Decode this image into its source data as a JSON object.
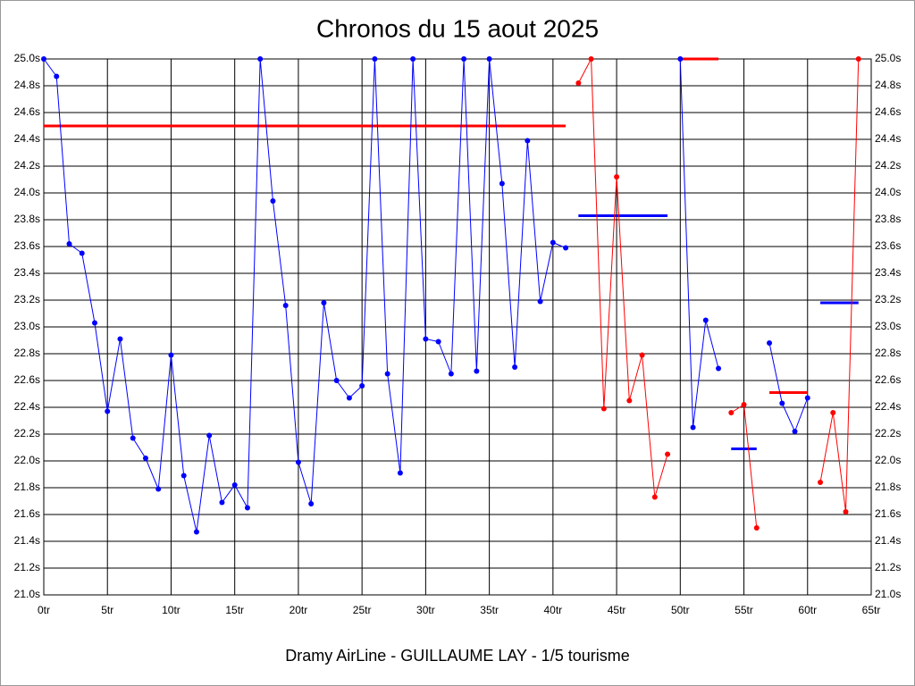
{
  "chart_data": {
    "type": "line",
    "title": "Chronos du 15 aout 2025",
    "x_label": "Dramy AirLine - GUILLAUME LAY - 1/5 tourisme",
    "xlim": [
      0,
      65
    ],
    "xticks": [
      {
        "value": 0,
        "label": "0tr"
      },
      {
        "value": 5,
        "label": "5tr"
      },
      {
        "value": 10,
        "label": "10tr"
      },
      {
        "value": 15,
        "label": "15tr"
      },
      {
        "value": 20,
        "label": "20tr"
      },
      {
        "value": 25,
        "label": "25tr"
      },
      {
        "value": 30,
        "label": "30tr"
      },
      {
        "value": 35,
        "label": "35tr"
      },
      {
        "value": 40,
        "label": "40tr"
      },
      {
        "value": 45,
        "label": "45tr"
      },
      {
        "value": 50,
        "label": "50tr"
      },
      {
        "value": 55,
        "label": "55tr"
      },
      {
        "value": 60,
        "label": "60tr"
      },
      {
        "value": 65,
        "label": "65tr"
      }
    ],
    "ylim": [
      21.0,
      25.0
    ],
    "yticks": [
      {
        "value": 21.0,
        "label": "21.0s"
      },
      {
        "value": 21.2,
        "label": "21.2s"
      },
      {
        "value": 21.4,
        "label": "21.4s"
      },
      {
        "value": 21.6,
        "label": "21.6s"
      },
      {
        "value": 21.8,
        "label": "21.8s"
      },
      {
        "value": 22.0,
        "label": "22.0s"
      },
      {
        "value": 22.2,
        "label": "22.2s"
      },
      {
        "value": 22.4,
        "label": "22.4s"
      },
      {
        "value": 22.6,
        "label": "22.6s"
      },
      {
        "value": 22.8,
        "label": "22.8s"
      },
      {
        "value": 23.0,
        "label": "23.0s"
      },
      {
        "value": 23.2,
        "label": "23.2s"
      },
      {
        "value": 23.4,
        "label": "23.4s"
      },
      {
        "value": 23.6,
        "label": "23.6s"
      },
      {
        "value": 23.8,
        "label": "23.8s"
      },
      {
        "value": 24.0,
        "label": "24.0s"
      },
      {
        "value": 24.2,
        "label": "24.2s"
      },
      {
        "value": 24.4,
        "label": "24.4s"
      },
      {
        "value": 24.6,
        "label": "24.6s"
      },
      {
        "value": 24.8,
        "label": "24.8s"
      },
      {
        "value": 25.0,
        "label": "25.0s"
      }
    ],
    "grid": true,
    "series": [
      {
        "color": "#0000ff",
        "x": [
          0,
          1,
          2,
          3,
          4,
          5,
          6,
          7,
          8,
          9,
          10,
          11,
          12,
          13,
          14,
          15,
          16,
          17,
          18,
          19,
          20,
          21,
          22,
          23,
          24,
          25,
          26,
          27,
          28,
          29,
          30,
          31,
          32,
          33,
          34,
          35,
          36,
          37,
          38,
          39,
          40,
          41
        ],
        "values": [
          25.0,
          24.87,
          23.62,
          23.55,
          23.03,
          22.37,
          22.91,
          22.17,
          22.02,
          21.79,
          22.79,
          21.89,
          21.47,
          22.19,
          21.69,
          21.82,
          21.65,
          25.0,
          23.94,
          23.16,
          21.99,
          21.68,
          23.18,
          22.6,
          22.47,
          22.56,
          25.0,
          22.65,
          21.91,
          25.0,
          22.91,
          22.89,
          22.65,
          25.0,
          22.67,
          25.0,
          24.07,
          22.7,
          24.39,
          23.19,
          23.63,
          23.59
        ]
      },
      {
        "color": "#ff0000",
        "x": [
          42,
          43,
          44,
          45,
          46,
          47,
          48,
          49
        ],
        "values": [
          24.82,
          25.0,
          22.39,
          24.12,
          22.45,
          22.79,
          21.73,
          22.05
        ]
      },
      {
        "color": "#0000ff",
        "x": [
          50,
          51,
          52,
          53
        ],
        "values": [
          25.0,
          22.25,
          23.05,
          22.69
        ]
      },
      {
        "color": "#ff0000",
        "x": [
          54,
          55,
          56
        ],
        "values": [
          22.36,
          22.42,
          21.5
        ]
      },
      {
        "color": "#0000ff",
        "x": [
          57,
          58,
          59,
          60
        ],
        "values": [
          22.88,
          22.43,
          22.22,
          22.47
        ]
      },
      {
        "color": "#ff0000",
        "x": [
          61,
          62,
          63,
          64
        ],
        "values": [
          21.84,
          22.36,
          21.62,
          25.0
        ]
      }
    ],
    "averages": [
      {
        "color": "#ff0000",
        "x": [
          0,
          41
        ],
        "value": 24.5
      },
      {
        "color": "#0000ff",
        "x": [
          42,
          49
        ],
        "value": 23.83
      },
      {
        "color": "#ff0000",
        "x": [
          50,
          53
        ],
        "value": 25.0
      },
      {
        "color": "#0000ff",
        "x": [
          54,
          56
        ],
        "value": 22.09
      },
      {
        "color": "#ff0000",
        "x": [
          57,
          60
        ],
        "value": 22.51
      },
      {
        "color": "#0000ff",
        "x": [
          61,
          64
        ],
        "value": 23.18
      }
    ]
  }
}
